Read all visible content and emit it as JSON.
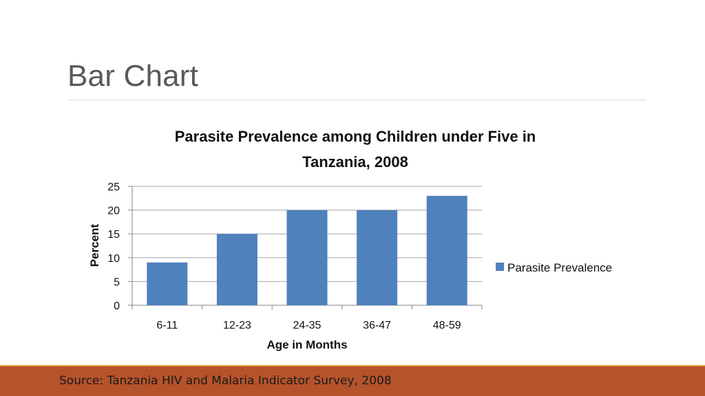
{
  "slide": {
    "title": "Bar Chart",
    "footer_source": "Source: Tanzania HIV and Malaria Indicator Survey, 2008"
  },
  "colors": {
    "bar": "#4f81bd",
    "footer_bar": "#b5532b",
    "footer_stripe": "#e99a43",
    "title_text": "#595959"
  },
  "chart_data": {
    "type": "bar",
    "title_lines": [
      "Parasite Prevalence among Children under Five in",
      "Tanzania, 2008"
    ],
    "xlabel": "Age in Months",
    "ylabel": "Percent",
    "categories": [
      "6-11",
      "12-23",
      "24-35",
      "36-47",
      "48-59"
    ],
    "series": [
      {
        "name": "Parasite Prevalence",
        "values": [
          9,
          15,
          20,
          20,
          23
        ]
      }
    ],
    "ylim": [
      0,
      25
    ],
    "yticks": [
      0,
      5,
      10,
      15,
      20,
      25
    ],
    "grid": true,
    "legend_position": "right"
  }
}
